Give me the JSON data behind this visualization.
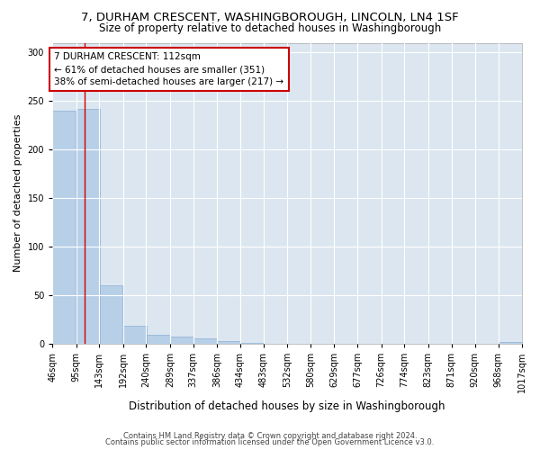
{
  "title_line1": "7, DURHAM CRESCENT, WASHINGBOROUGH, LINCOLN, LN4 1SF",
  "title_line2": "Size of property relative to detached houses in Washingborough",
  "xlabel": "Distribution of detached houses by size in Washingborough",
  "ylabel": "Number of detached properties",
  "footer_line1": "Contains HM Land Registry data © Crown copyright and database right 2024.",
  "footer_line2": "Contains public sector information licensed under the Open Government Licence v3.0.",
  "annotation_line1": "7 DURHAM CRESCENT: 112sqm",
  "annotation_line2": "← 61% of detached houses are smaller (351)",
  "annotation_line3": "38% of semi-detached houses are larger (217) →",
  "property_size_sqm": 112,
  "bin_edges": [
    46,
    95,
    143,
    192,
    240,
    289,
    337,
    386,
    434,
    483,
    532,
    580,
    629,
    677,
    726,
    774,
    823,
    871,
    920,
    968,
    1017
  ],
  "bin_labels": [
    "46sqm",
    "95sqm",
    "143sqm",
    "192sqm",
    "240sqm",
    "289sqm",
    "337sqm",
    "386sqm",
    "434sqm",
    "483sqm",
    "532sqm",
    "580sqm",
    "629sqm",
    "677sqm",
    "726sqm",
    "774sqm",
    "823sqm",
    "871sqm",
    "920sqm",
    "968sqm",
    "1017sqm"
  ],
  "bar_heights": [
    240,
    242,
    60,
    18,
    9,
    7,
    5,
    3,
    1,
    0,
    0,
    0,
    0,
    0,
    0,
    0,
    0,
    0,
    0,
    2,
    0
  ],
  "bar_color": "#b8cfe8",
  "bar_edge_color": "#8aafd4",
  "vline_color": "#cc0000",
  "vline_x": 112,
  "ylim": [
    0,
    310
  ],
  "yticks": [
    0,
    50,
    100,
    150,
    200,
    250,
    300
  ],
  "fig_background": "#ffffff",
  "plot_background": "#dce6f0",
  "annotation_box_color": "#ffffff",
  "annotation_box_edge": "#cc0000",
  "title_fontsize": 9.5,
  "subtitle_fontsize": 8.5,
  "ylabel_fontsize": 8,
  "xlabel_fontsize": 8.5,
  "tick_fontsize": 7,
  "annotation_fontsize": 7.5,
  "footer_fontsize": 6
}
